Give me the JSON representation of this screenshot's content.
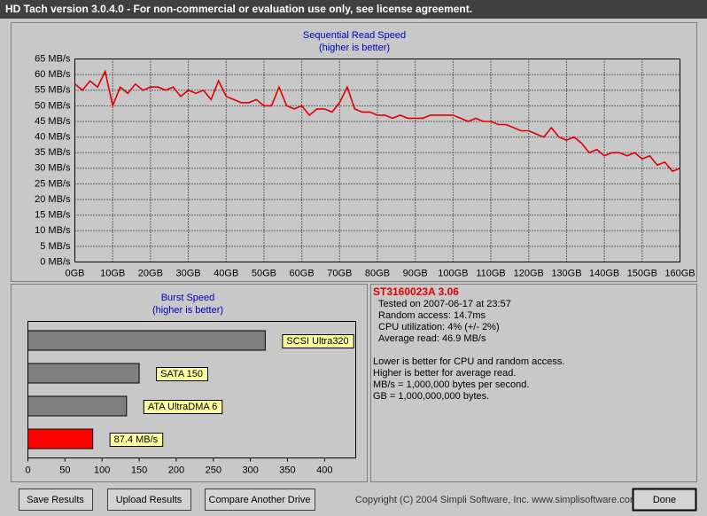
{
  "window_title": "HD Tach version 3.0.4.0  - For non-commercial or evaluation use only, see license agreement.",
  "chart_data": [
    {
      "type": "line",
      "title": "Sequential Read Speed",
      "subtitle": "(higher is better)",
      "color": "#e00000",
      "grid": true,
      "x": [
        0,
        2,
        4,
        6,
        8,
        10,
        12,
        14,
        16,
        18,
        20,
        22,
        24,
        26,
        28,
        30,
        32,
        34,
        36,
        38,
        40,
        42,
        44,
        46,
        48,
        50,
        52,
        54,
        56,
        58,
        60,
        62,
        64,
        66,
        68,
        70,
        72,
        74,
        76,
        78,
        80,
        82,
        84,
        86,
        88,
        90,
        92,
        94,
        96,
        98,
        100,
        102,
        104,
        106,
        108,
        110,
        112,
        114,
        116,
        118,
        120,
        122,
        124,
        126,
        128,
        130,
        132,
        134,
        136,
        138,
        140,
        142,
        144,
        146,
        148,
        150,
        152,
        154,
        156,
        158,
        160
      ],
      "values": [
        57,
        55,
        58,
        56,
        61,
        50,
        56,
        54,
        57,
        55,
        56,
        56,
        55,
        56,
        53,
        55,
        54,
        55,
        52,
        58,
        53,
        52,
        51,
        51,
        52,
        50,
        50,
        56,
        50,
        49,
        50,
        47,
        49,
        49,
        48,
        51,
        56,
        49,
        48,
        48,
        47,
        47,
        46,
        47,
        46,
        46,
        46,
        47,
        47,
        47,
        47,
        46,
        45,
        46,
        45,
        45,
        44,
        44,
        43,
        42,
        42,
        41,
        40,
        43,
        40,
        39,
        40,
        38,
        35,
        36,
        34,
        35,
        35,
        34,
        35,
        33,
        34,
        31,
        32,
        29,
        30
      ],
      "xlim": [
        0,
        160
      ],
      "ylim": [
        0,
        65
      ],
      "xticks": [
        {
          "value": 0,
          "label": "0GB"
        },
        {
          "value": 10,
          "label": "10GB"
        },
        {
          "value": 20,
          "label": "20GB"
        },
        {
          "value": 30,
          "label": "30GB"
        },
        {
          "value": 40,
          "label": "40GB"
        },
        {
          "value": 50,
          "label": "50GB"
        },
        {
          "value": 60,
          "label": "60GB"
        },
        {
          "value": 70,
          "label": "70GB"
        },
        {
          "value": 80,
          "label": "80GB"
        },
        {
          "value": 90,
          "label": "90GB"
        },
        {
          "value": 100,
          "label": "100GB"
        },
        {
          "value": 110,
          "label": "110GB"
        },
        {
          "value": 120,
          "label": "120GB"
        },
        {
          "value": 130,
          "label": "130GB"
        },
        {
          "value": 140,
          "label": "140GB"
        },
        {
          "value": 150,
          "label": "150GB"
        },
        {
          "value": 160,
          "label": "160GB"
        }
      ],
      "yticks": [
        {
          "value": 0,
          "label": "0 MB/s"
        },
        {
          "value": 5,
          "label": "5 MB/s"
        },
        {
          "value": 10,
          "label": "10 MB/s"
        },
        {
          "value": 15,
          "label": "15 MB/s"
        },
        {
          "value": 20,
          "label": "20 MB/s"
        },
        {
          "value": 25,
          "label": "25 MB/s"
        },
        {
          "value": 30,
          "label": "30 MB/s"
        },
        {
          "value": 35,
          "label": "35 MB/s"
        },
        {
          "value": 40,
          "label": "40 MB/s"
        },
        {
          "value": 45,
          "label": "45 MB/s"
        },
        {
          "value": 50,
          "label": "50 MB/s"
        },
        {
          "value": 55,
          "label": "55 MB/s"
        },
        {
          "value": 60,
          "label": "60 MB/s"
        },
        {
          "value": 65,
          "label": "65 MB/s"
        }
      ]
    },
    {
      "type": "hbar",
      "title": "Burst Speed",
      "subtitle": "(higher is better)",
      "categories": [
        "SCSI Ultra320",
        "SATA 150",
        "ATA UltraDMA 6",
        null
      ],
      "values": [
        320,
        150,
        133,
        87.4
      ],
      "value_labels": [
        null,
        null,
        null,
        "87.4 MB/s"
      ],
      "colors": [
        "#808080",
        "#808080",
        "#808080",
        "#ff0000"
      ],
      "xlim": [
        0,
        442
      ],
      "xticks": [
        0,
        50,
        100,
        150,
        200,
        250,
        300,
        350,
        400
      ]
    }
  ],
  "info": {
    "drive": "ST3160023A 3.06",
    "details": [
      "Tested on 2007-06-17 at 23:57",
      "Random access: 14.7ms",
      "CPU utilization: 4% (+/- 2%)",
      "Average read: 46.9 MB/s"
    ],
    "notes": [
      "Lower is better for CPU and random access.",
      "Higher is better for average read.",
      "MB/s = 1,000,000 bytes per second.",
      "GB = 1,000,000,000 bytes."
    ]
  },
  "buttons": [
    "Save Results",
    "Upload Results",
    "Compare Another Drive"
  ],
  "copyright": "Copyright (C) 2004 Simpli Software, Inc. www.simplisoftware.com",
  "done_button": "Done"
}
